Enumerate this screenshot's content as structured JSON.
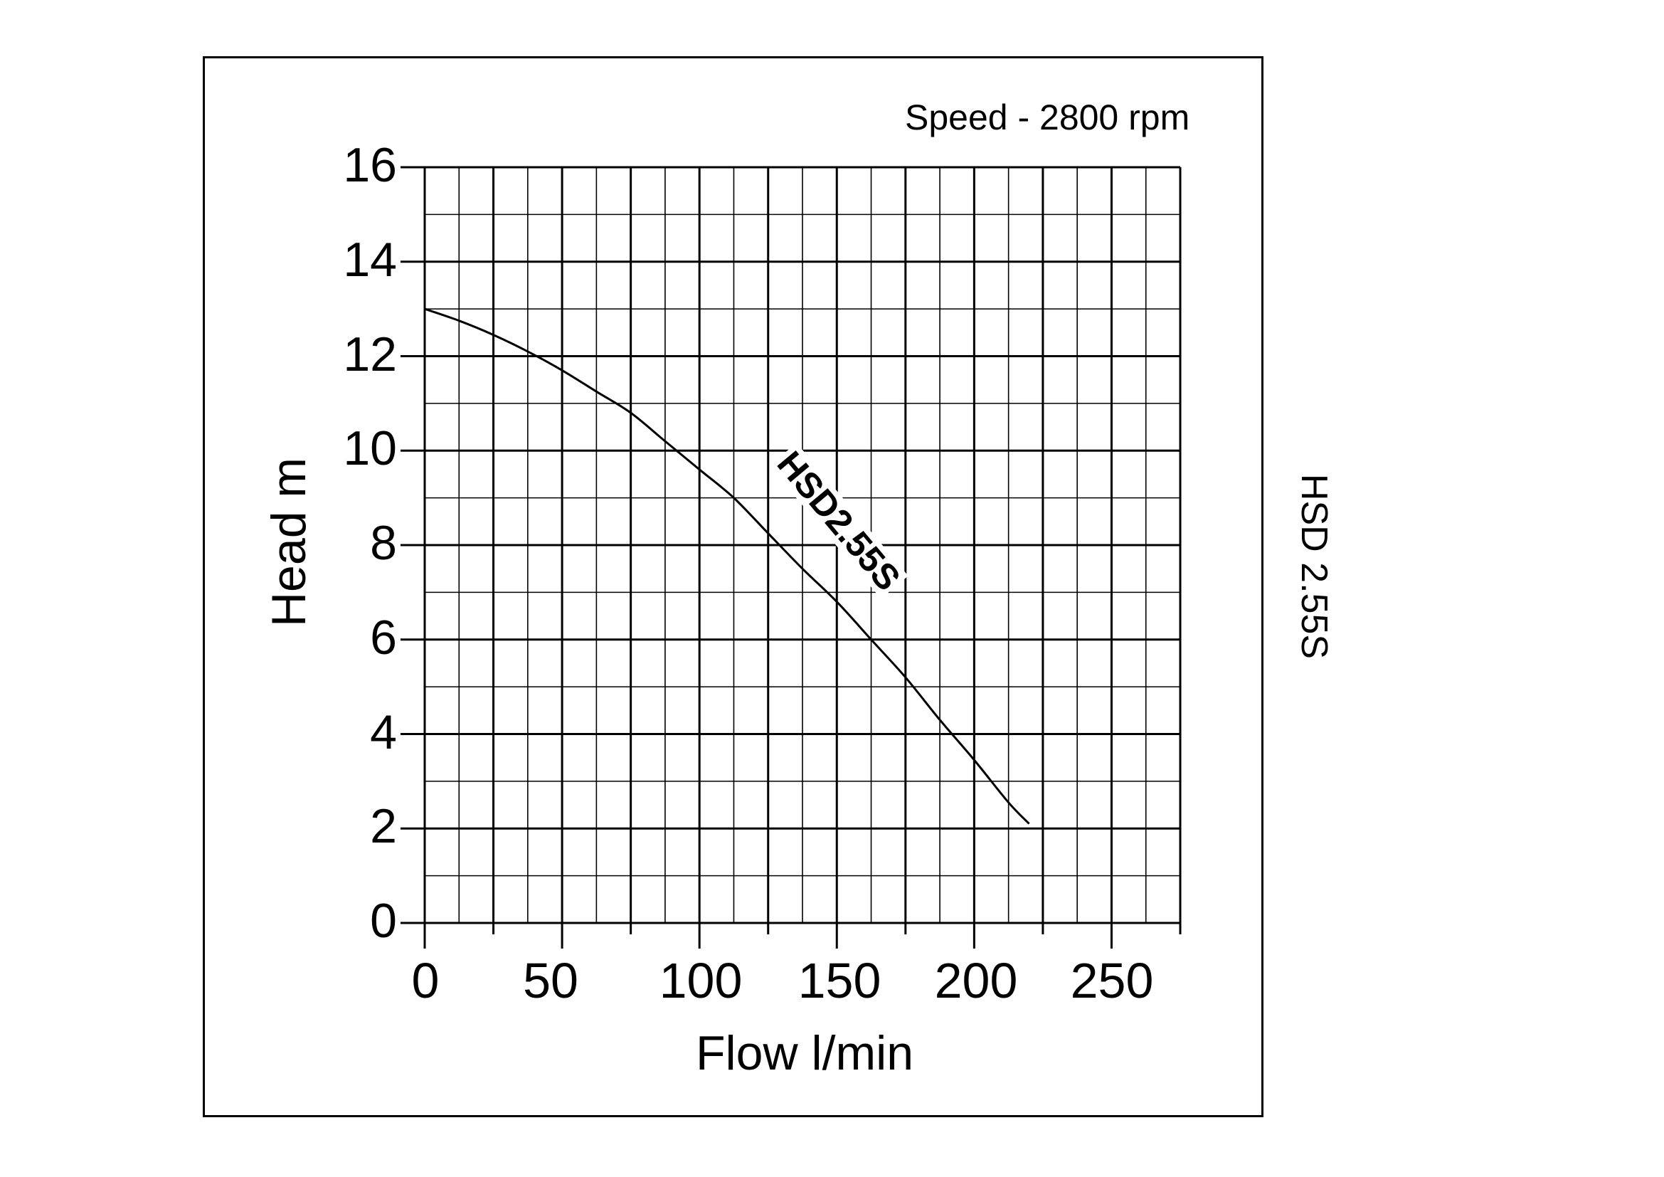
{
  "page": {
    "speed_note": "Speed - 2800 rpm",
    "side_label": "HSD 2.55S",
    "x_axis_label": "Flow l/min",
    "y_axis_label": "Head m",
    "curve_label": "HSD2.55S"
  },
  "colors": {
    "line": "#000000",
    "background": "#ffffff"
  },
  "chart_data": {
    "type": "line",
    "title": "Speed - 2800 rpm",
    "xlabel": "Flow l/min",
    "ylabel": "Head m",
    "xlim": [
      0,
      275
    ],
    "ylim": [
      0,
      16
    ],
    "x_ticks": [
      0,
      50,
      100,
      150,
      200,
      250
    ],
    "x_tick_labels": [
      "0",
      "50",
      "100",
      "150",
      "200",
      "250"
    ],
    "y_ticks": [
      0,
      2,
      4,
      6,
      8,
      10,
      12,
      14,
      16
    ],
    "y_tick_labels": [
      "0",
      "2",
      "4",
      "6",
      "8",
      "10",
      "12",
      "14",
      "16"
    ],
    "x_major_grid_step": 25,
    "x_minor_grid_step": 12.5,
    "y_major_grid_step": 2,
    "y_minor_grid_step": 1,
    "grid": true,
    "legend": "none",
    "annotations": [
      {
        "text": "HSD2.55S",
        "position": "along curve near flow 135, head 8"
      },
      {
        "text": "Speed - 2800 rpm",
        "position": "top right"
      },
      {
        "text": "HSD 2.55S",
        "position": "right margin, rotated"
      }
    ],
    "series": [
      {
        "name": "HSD2.55S",
        "x": [
          0,
          12.5,
          25,
          37.5,
          50,
          62.5,
          75,
          87.5,
          100,
          112.5,
          125,
          137.5,
          150,
          162.5,
          175,
          187.5,
          200,
          212.5,
          220
        ],
        "y": [
          13.0,
          12.75,
          12.45,
          12.1,
          11.7,
          11.25,
          10.8,
          10.2,
          9.6,
          9.0,
          8.25,
          7.5,
          6.8,
          6.0,
          5.2,
          4.3,
          3.45,
          2.55,
          2.1
        ]
      }
    ]
  }
}
